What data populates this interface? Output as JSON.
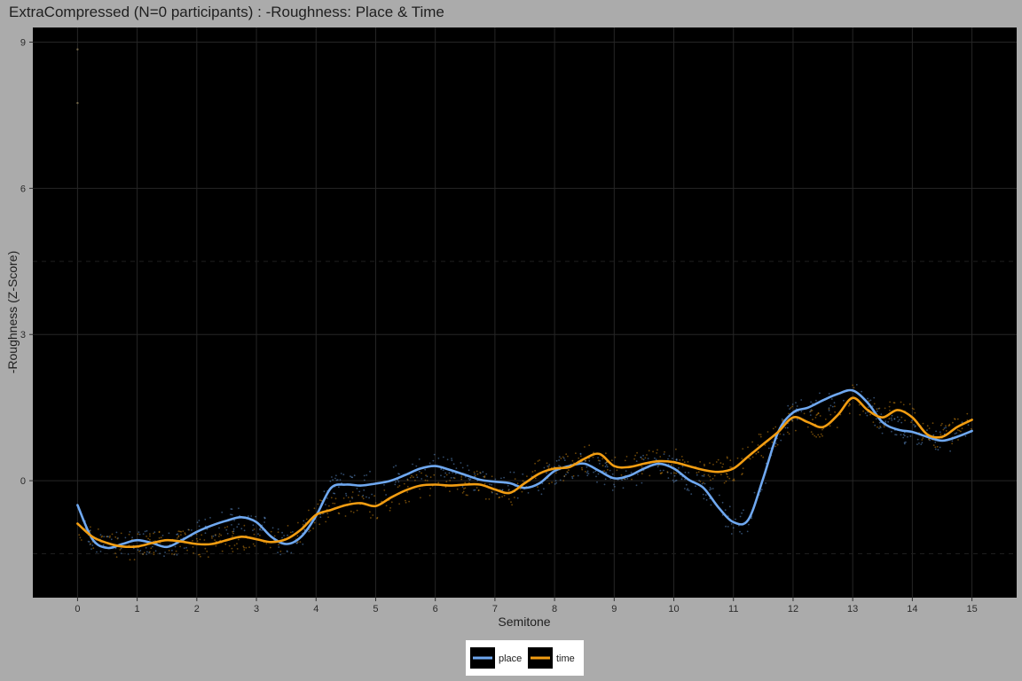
{
  "chart_data": {
    "type": "line",
    "title": "ExtraCompressed (N=0 participants) : -Roughness: Place & Time",
    "xlabel": "Semitone",
    "ylabel": "-Roughness (Z-Score)",
    "xlim": [
      -0.75,
      15.75
    ],
    "ylim": [
      -2.4,
      9.3
    ],
    "x_ticks": [
      0,
      1,
      2,
      3,
      4,
      5,
      6,
      7,
      8,
      9,
      10,
      11,
      12,
      13,
      14,
      15
    ],
    "y_ticks": [
      0,
      3,
      6,
      9
    ],
    "y_minor_dashed": [
      -1.5,
      4.5
    ],
    "grid": true,
    "background": "#000000",
    "panel_color": "#ababab",
    "legend_position": "bottom",
    "series": [
      {
        "name": "place",
        "color": "#6fa8f0",
        "x": [
          0,
          0.25,
          0.5,
          0.75,
          1,
          1.25,
          1.5,
          1.75,
          2,
          2.25,
          2.5,
          2.75,
          3,
          3.25,
          3.5,
          3.75,
          4,
          4.25,
          4.5,
          4.75,
          5,
          5.25,
          5.5,
          5.75,
          6,
          6.25,
          6.5,
          6.75,
          7,
          7.25,
          7.5,
          7.75,
          8,
          8.25,
          8.5,
          8.75,
          9,
          9.25,
          9.5,
          9.75,
          10,
          10.25,
          10.5,
          10.75,
          11,
          11.25,
          11.5,
          11.75,
          12,
          12.25,
          12.5,
          12.75,
          13,
          13.25,
          13.5,
          13.75,
          14,
          14.25,
          14.5,
          14.75,
          15
        ],
        "y": [
          -0.5,
          -1.2,
          -1.38,
          -1.3,
          -1.22,
          -1.28,
          -1.36,
          -1.22,
          -1.05,
          -0.92,
          -0.82,
          -0.75,
          -0.85,
          -1.15,
          -1.3,
          -1.15,
          -0.72,
          -0.15,
          -0.08,
          -0.1,
          -0.06,
          0.0,
          0.12,
          0.25,
          0.3,
          0.22,
          0.12,
          0.02,
          -0.02,
          -0.05,
          -0.15,
          -0.05,
          0.2,
          0.3,
          0.35,
          0.2,
          0.05,
          0.1,
          0.25,
          0.35,
          0.25,
          0.02,
          -0.15,
          -0.55,
          -0.85,
          -0.8,
          0.05,
          1.0,
          1.4,
          1.5,
          1.65,
          1.78,
          1.85,
          1.6,
          1.2,
          1.05,
          1.0,
          0.9,
          0.82,
          0.9,
          1.02
        ]
      },
      {
        "name": "time",
        "color": "#f29d12",
        "x": [
          0,
          0.25,
          0.5,
          0.75,
          1,
          1.25,
          1.5,
          1.75,
          2,
          2.25,
          2.5,
          2.75,
          3,
          3.25,
          3.5,
          3.75,
          4,
          4.25,
          4.5,
          4.75,
          5,
          5.25,
          5.5,
          5.75,
          6,
          6.25,
          6.5,
          6.75,
          7,
          7.25,
          7.5,
          7.75,
          8,
          8.25,
          8.5,
          8.75,
          9,
          9.25,
          9.5,
          9.75,
          10,
          10.25,
          10.5,
          10.75,
          11,
          11.25,
          11.5,
          11.75,
          12,
          12.25,
          12.5,
          12.75,
          13,
          13.25,
          13.5,
          13.75,
          14,
          14.25,
          14.5,
          14.75,
          15
        ],
        "y": [
          -0.88,
          -1.15,
          -1.28,
          -1.35,
          -1.35,
          -1.28,
          -1.22,
          -1.25,
          -1.3,
          -1.3,
          -1.22,
          -1.15,
          -1.2,
          -1.26,
          -1.2,
          -1.0,
          -0.7,
          -0.6,
          -0.5,
          -0.46,
          -0.52,
          -0.35,
          -0.2,
          -0.1,
          -0.08,
          -0.1,
          -0.08,
          -0.08,
          -0.18,
          -0.25,
          -0.05,
          0.15,
          0.25,
          0.28,
          0.45,
          0.55,
          0.3,
          0.28,
          0.35,
          0.4,
          0.38,
          0.3,
          0.22,
          0.18,
          0.25,
          0.5,
          0.75,
          1.0,
          1.3,
          1.2,
          1.1,
          1.35,
          1.7,
          1.45,
          1.3,
          1.45,
          1.3,
          0.95,
          0.9,
          1.1,
          1.25
        ]
      }
    ]
  }
}
